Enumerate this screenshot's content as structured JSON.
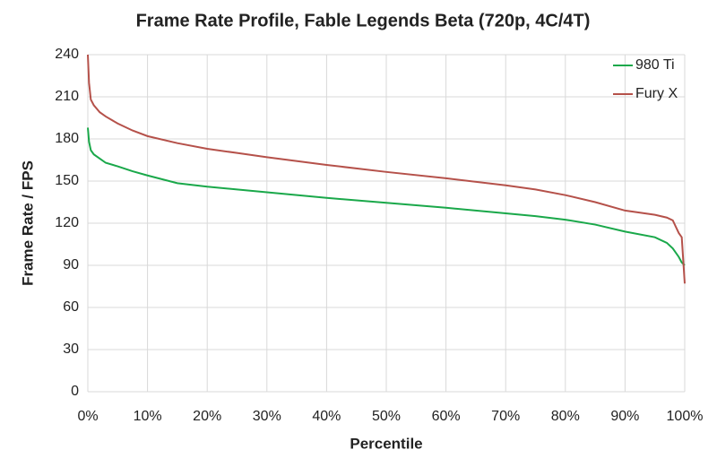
{
  "chart_data": {
    "type": "line",
    "title": "Frame Rate Profile, Fable Legends Beta (720p, 4C/4T)",
    "xlabel": "Percentile",
    "ylabel": "Frame Rate / FPS",
    "x": [
      0,
      0.2,
      0.5,
      1,
      2,
      3,
      5,
      7.5,
      10,
      15,
      20,
      25,
      30,
      40,
      50,
      60,
      70,
      75,
      80,
      85,
      90,
      95,
      97,
      98,
      99,
      99.5,
      100
    ],
    "series": [
      {
        "name": "980 Ti",
        "color": "#1aa84a",
        "values": [
          188,
          178,
          172,
          169,
          166,
          163,
          160.5,
          157,
          154,
          148.5,
          146,
          144,
          142,
          138,
          134.5,
          131,
          127,
          125,
          122.5,
          119,
          114,
          110,
          106,
          102,
          96,
          92,
          90
        ]
      },
      {
        "name": "Fury X",
        "color": "#b5514a",
        "values": [
          240,
          220,
          208,
          204,
          199,
          196,
          191,
          186,
          182,
          177,
          173,
          170,
          167,
          161.5,
          156.5,
          152,
          147,
          144,
          140,
          135,
          129,
          126,
          124,
          122,
          113,
          110,
          77
        ]
      }
    ],
    "xlim": [
      0,
      100
    ],
    "xticks": [
      {
        "value": 0,
        "label": "0%"
      },
      {
        "value": 10,
        "label": "10%"
      },
      {
        "value": 20,
        "label": "20%"
      },
      {
        "value": 30,
        "label": "30%"
      },
      {
        "value": 40,
        "label": "40%"
      },
      {
        "value": 50,
        "label": "50%"
      },
      {
        "value": 60,
        "label": "60%"
      },
      {
        "value": 70,
        "label": "70%"
      },
      {
        "value": 80,
        "label": "80%"
      },
      {
        "value": 90,
        "label": "90%"
      },
      {
        "value": 100,
        "label": "100%"
      }
    ],
    "ylim": [
      0,
      240
    ],
    "yticks": [
      0,
      30,
      60,
      90,
      120,
      150,
      180,
      210,
      240
    ],
    "grid": true,
    "legend": "top-right"
  }
}
